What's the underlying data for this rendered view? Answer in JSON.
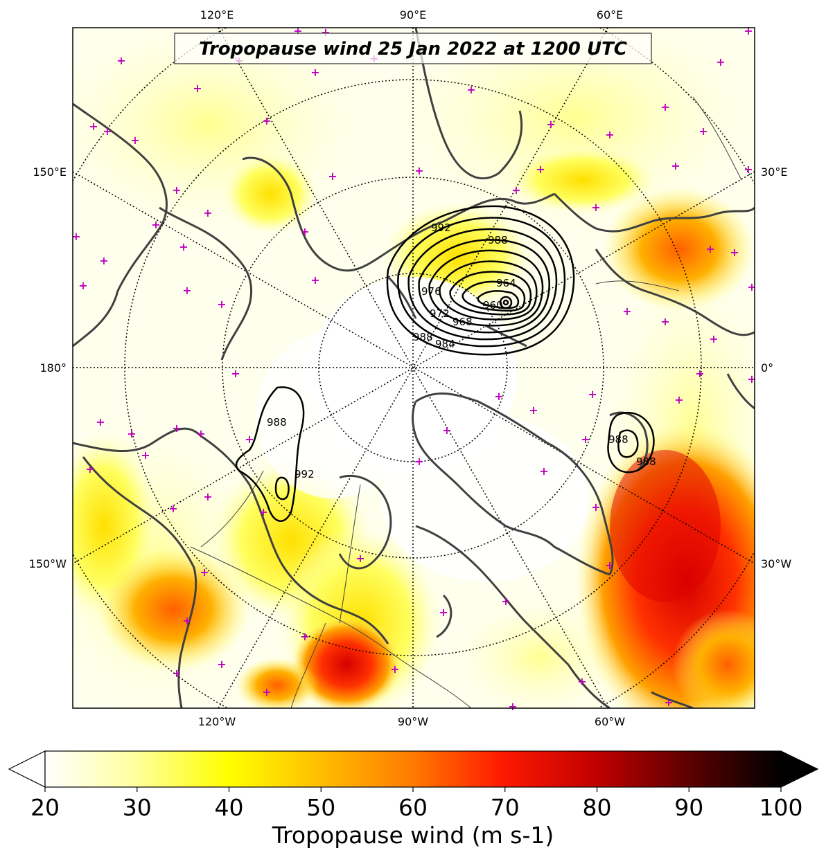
{
  "title": "Tropopause wind 25 Jan 2022 at 1200 UTC",
  "lon_labels": {
    "top": [
      "120°E",
      "90°E",
      "60°E"
    ],
    "bottom": [
      "120°W",
      "90°W",
      "60°W"
    ],
    "left": [
      "150°E",
      "180°",
      "150°W"
    ],
    "right": [
      "30°E",
      "0°",
      "30°W"
    ]
  },
  "colorbar": {
    "label": "Tropopause wind (m s-1)",
    "min": 20,
    "max": 100,
    "ticks": [
      "20",
      "30",
      "40",
      "50",
      "60",
      "70",
      "80",
      "90",
      "100"
    ],
    "extend": "both",
    "colormap": "hot_r"
  },
  "colors": {
    "light_yellow": "#ffffc0",
    "yellow": "#ffff00",
    "orange": "#ff9900",
    "red": "#e00000",
    "coast": "#404040",
    "station_marker": "#c000c0"
  },
  "pressure_contours": {
    "unit": "hPa",
    "labels": [
      "992",
      "988",
      "976",
      "964",
      "972",
      "968",
      "960",
      "988",
      "984",
      "988",
      "992",
      "988",
      "988"
    ]
  }
}
